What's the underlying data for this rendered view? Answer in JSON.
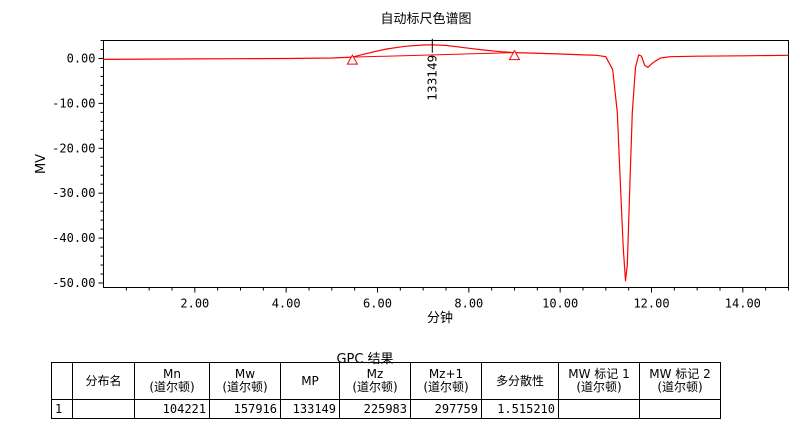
{
  "chart_data": {
    "type": "line",
    "title": "自动标尺色谱图",
    "xlabel": "分钟",
    "ylabel": "MV",
    "xlim": [
      0,
      15
    ],
    "ylim": [
      -51,
      4
    ],
    "x_ticks": [
      2,
      4,
      6,
      8,
      10,
      12,
      14
    ],
    "x_tick_labels": [
      "2.00",
      "4.00",
      "6.00",
      "8.00",
      "10.00",
      "12.00",
      "14.00"
    ],
    "y_ticks": [
      0,
      -10,
      -20,
      -30,
      -40,
      -50
    ],
    "y_tick_labels": [
      "0.00",
      "-10.00",
      "-20.00",
      "-30.00",
      "-40.00",
      "-50.00"
    ],
    "line_color": "#ff0000",
    "series": [
      {
        "x": [
          0,
          1,
          2,
          3,
          4,
          5,
          5.45,
          5.8,
          6.2,
          6.6,
          7.0,
          7.2,
          7.5,
          7.9,
          8.3,
          8.7,
          9.0,
          9.4,
          10.0,
          10.5,
          10.8,
          11.0,
          11.15,
          11.25,
          11.32,
          11.38,
          11.43,
          11.47,
          11.52,
          11.58,
          11.65,
          11.72,
          11.78,
          11.85,
          11.92,
          12.0,
          12.08,
          12.2,
          12.4,
          13.0,
          14.0,
          15.0
        ],
        "y": [
          -0.2,
          -0.15,
          -0.1,
          -0.05,
          0,
          0.1,
          0.3,
          1.2,
          2.1,
          2.7,
          3.0,
          3.05,
          2.9,
          2.4,
          1.9,
          1.5,
          1.3,
          1.2,
          1.0,
          0.8,
          0.7,
          0.4,
          -2.5,
          -12,
          -28,
          -42,
          -49.5,
          -46,
          -30,
          -12,
          -2,
          0.8,
          0.5,
          -1.5,
          -2.0,
          -1.2,
          -0.6,
          0.1,
          0.4,
          0.5,
          0.6,
          0.7
        ]
      }
    ],
    "baseline": {
      "x": [
        5.45,
        9.0
      ],
      "y": [
        0.3,
        1.3
      ]
    },
    "markers": [
      {
        "type": "triangle",
        "x": 5.45,
        "y": 0.3
      },
      {
        "type": "triangle",
        "x": 9.0,
        "y": 1.3
      }
    ],
    "peak_annotation": {
      "x": 7.2,
      "y": 3.05,
      "label": "133149"
    }
  },
  "table": {
    "title": "GPC 结果",
    "headers": [
      [
        "",
        ""
      ],
      [
        "分布名",
        ""
      ],
      [
        "Mn",
        "(道尔顿)"
      ],
      [
        "Mw",
        "(道尔顿)"
      ],
      [
        "MP",
        ""
      ],
      [
        "Mz",
        "(道尔顿)"
      ],
      [
        "Mz+1",
        "(道尔顿)"
      ],
      [
        "多分散性",
        ""
      ],
      [
        "MW 标记 1",
        "(道尔顿)"
      ],
      [
        "MW 标记 2",
        "(道尔顿)"
      ]
    ],
    "rows": [
      [
        "1",
        "",
        "104221",
        "157916",
        "133149",
        "225983",
        "297759",
        "1.515210",
        "",
        ""
      ]
    ]
  }
}
